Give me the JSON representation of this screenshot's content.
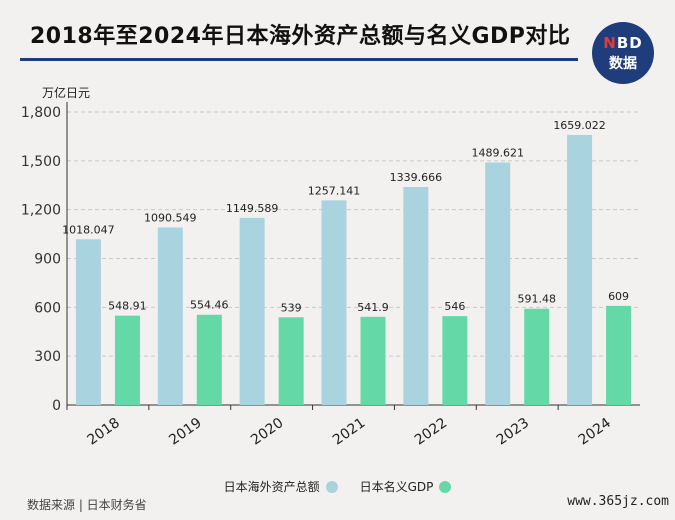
{
  "title": "2018年至2024年日本海外资产总额与名义GDP对比",
  "logo": {
    "line1_n": "N",
    "line1_rest": "BD",
    "line2": "数据"
  },
  "unit_label": "万亿日元",
  "source": "数据来源 | 日本财务省",
  "site_watermark": "www.365jz.com",
  "colors": {
    "series1": "#a9d3df",
    "series2": "#64d9a7",
    "rule": "#1f3d7a"
  },
  "chart_data": {
    "type": "bar",
    "categories": [
      "2018",
      "2019",
      "2020",
      "2021",
      "2022",
      "2023",
      "2024"
    ],
    "series": [
      {
        "name": "日本海外资产总额",
        "values": [
          1018.047,
          1090.549,
          1149.589,
          1257.141,
          1339.666,
          1489.621,
          1659.022
        ],
        "labels": [
          "1018.047",
          "1090.549",
          "1149.589",
          "1257.141",
          "1339.666",
          "1489.621",
          "1659.022"
        ]
      },
      {
        "name": "日本名义GDP",
        "values": [
          548.91,
          554.46,
          539,
          541.9,
          546,
          591.48,
          609
        ],
        "labels": [
          "548.91",
          "554.46",
          "539",
          "541.9",
          "546",
          "591.48",
          "609"
        ]
      }
    ],
    "ylabel": "万亿日元",
    "ylim": [
      0,
      1800
    ],
    "yticks": [
      0,
      300,
      600,
      900,
      1200,
      1500,
      1800
    ],
    "ytick_labels": [
      "0",
      "300",
      "600",
      "900",
      "1,200",
      "1,500",
      "1,800"
    ],
    "grid": true,
    "legend_position": "bottom"
  }
}
